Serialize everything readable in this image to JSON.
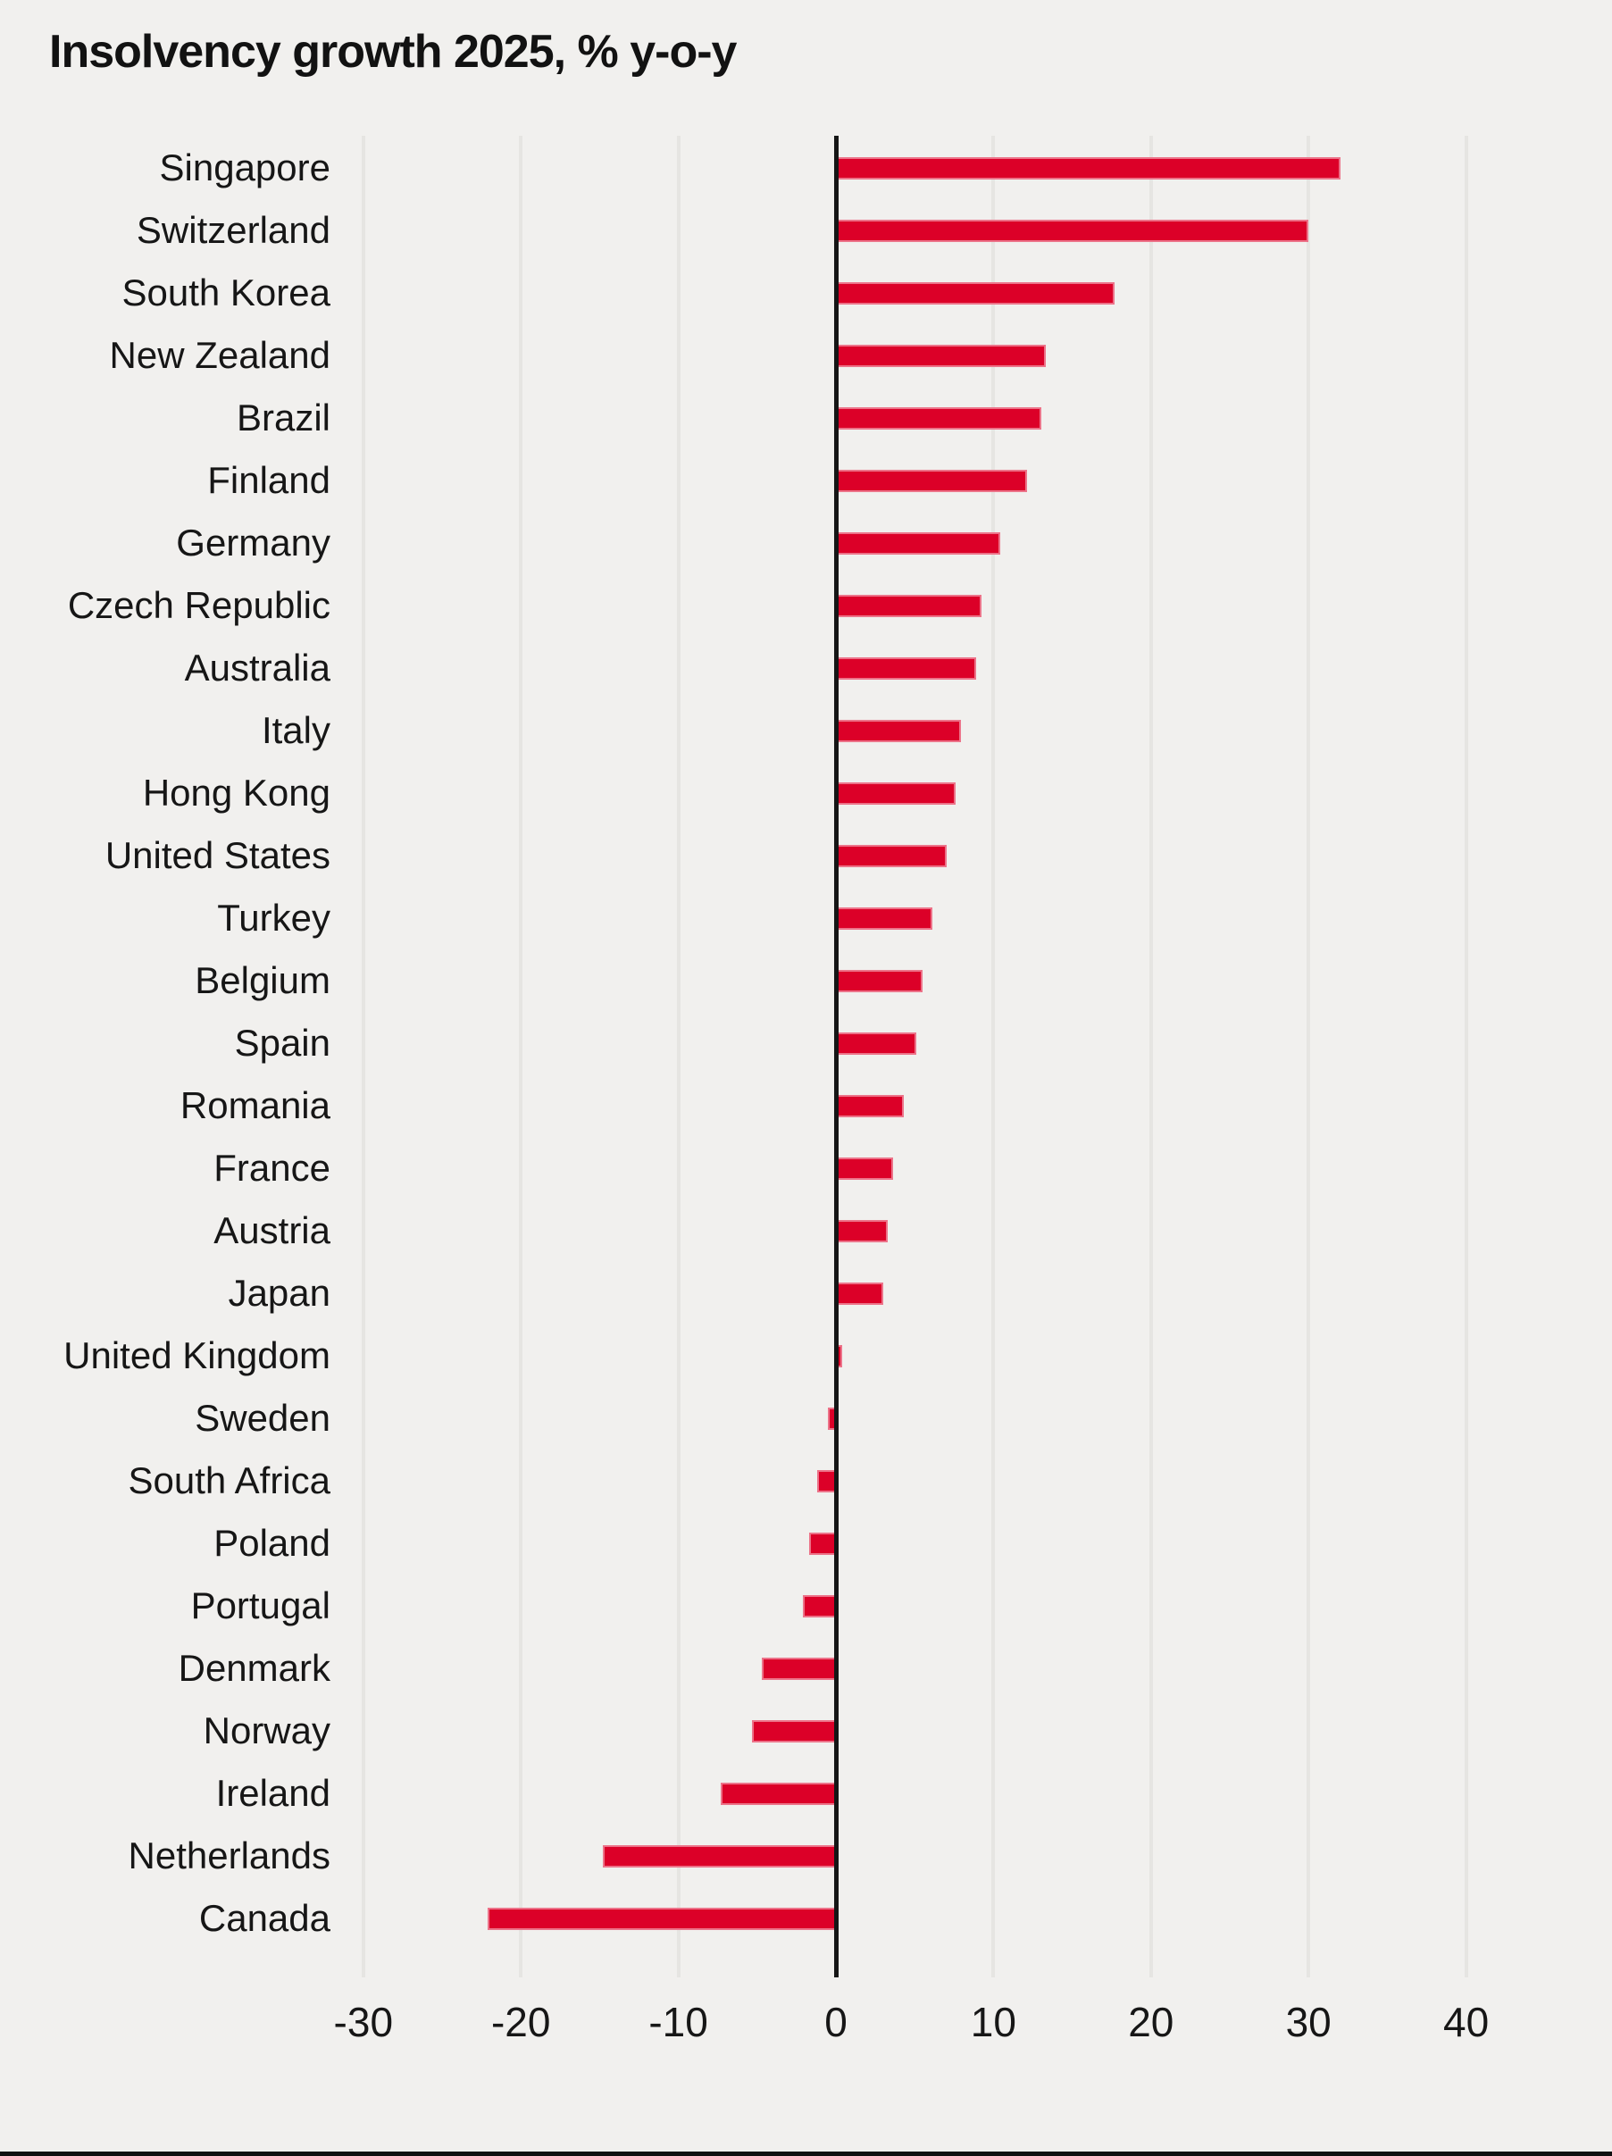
{
  "title": "Insolvency growth 2025, % y-o-y",
  "chart_data": {
    "type": "bar",
    "orientation": "horizontal",
    "title": "Insolvency growth 2025, % y-o-y",
    "categories": [
      "Singapore",
      "Switzerland",
      "South Korea",
      "New Zealand",
      "Brazil",
      "Finland",
      "Germany",
      "Czech Republic",
      "Australia",
      "Italy",
      "Hong Kong",
      "United States",
      "Turkey",
      "Belgium",
      "Spain",
      "Romania",
      "France",
      "Austria",
      "Japan",
      "United Kingdom",
      "Sweden",
      "South Africa",
      "Poland",
      "Portugal",
      "Denmark",
      "Norway",
      "Ireland",
      "Netherlands",
      "Canada"
    ],
    "values": [
      31.9,
      29.9,
      17.6,
      13.2,
      12.9,
      12.0,
      10.3,
      9.1,
      8.8,
      7.8,
      7.5,
      6.9,
      6.0,
      5.4,
      5.0,
      4.2,
      3.5,
      3.2,
      2.9,
      0.3,
      -0.4,
      -1.1,
      -1.6,
      -2.0,
      -4.6,
      -5.2,
      -7.2,
      -14.7,
      -22.0
    ],
    "x_ticks": [
      -30,
      -20,
      -10,
      0,
      10,
      20,
      30,
      40
    ],
    "xlim": [
      -39,
      47.5
    ],
    "grid": "vertical-only",
    "legend": "none",
    "unit": "% y-o-y",
    "colors": {
      "bar": "#dc0028",
      "background": "#f1f0ee",
      "grid": "#e6e5e2",
      "axis": "#161616",
      "text": "#161616"
    }
  }
}
